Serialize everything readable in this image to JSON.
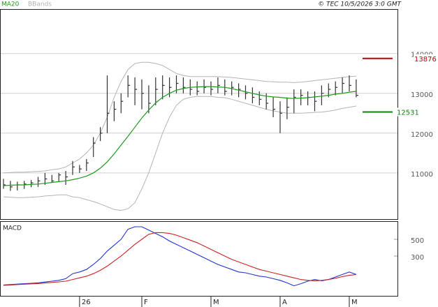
{
  "header": {
    "credit": "© TEC 10/5/2026 3:0 GMT"
  },
  "chart_data": [
    {
      "type": "ohlc",
      "ylim": [
        9840,
        15100
      ],
      "yticks": [
        11000,
        12000,
        13000,
        14000
      ],
      "grid": true,
      "bar_color": "#333333",
      "high": [
        10850,
        10800,
        10780,
        10800,
        10820,
        10900,
        11000,
        10950,
        11000,
        11050,
        11300,
        11200,
        11350,
        11900,
        12150,
        13450,
        12800,
        13000,
        13450,
        13400,
        13350,
        13200,
        13400,
        13450,
        13400,
        13450,
        13400,
        13350,
        13300,
        13350,
        13300,
        13400,
        13350,
        13300,
        13250,
        13200,
        13150,
        13050,
        13000,
        12900,
        12800,
        12900,
        13100,
        13100,
        13050,
        13050,
        13200,
        13250,
        13300,
        13400,
        13450,
        13350
      ],
      "low": [
        10600,
        10550,
        10560,
        10600,
        10640,
        10650,
        10700,
        10750,
        10780,
        10700,
        10950,
        11000,
        11050,
        11400,
        11800,
        12000,
        12300,
        12500,
        12900,
        12700,
        12600,
        12500,
        12700,
        12850,
        12900,
        13000,
        13000,
        12950,
        12950,
        13000,
        12950,
        13000,
        12950,
        12950,
        12900,
        12850,
        12750,
        12700,
        12600,
        12400,
        12000,
        12350,
        12500,
        12700,
        12700,
        12550,
        12700,
        12900,
        12950,
        13000,
        13050,
        12900
      ],
      "close": [
        10700,
        10650,
        10700,
        10720,
        10750,
        10800,
        10850,
        10800,
        10950,
        10900,
        11150,
        11100,
        11250,
        11750,
        12000,
        12500,
        12600,
        12800,
        13200,
        13100,
        13000,
        12750,
        13100,
        13200,
        13150,
        13250,
        13150,
        13100,
        13050,
        13150,
        13100,
        13200,
        13050,
        13150,
        13100,
        13000,
        12900,
        12850,
        12750,
        12600,
        12500,
        12650,
        12900,
        12950,
        12900,
        12800,
        13000,
        13100,
        13150,
        13250,
        13200,
        12950
      ],
      "series": [
        {
          "name": "MA20",
          "color": "#1f9a1f",
          "values": [
            10680,
            10690,
            10700,
            10700,
            10710,
            10720,
            10740,
            10760,
            10780,
            10800,
            10830,
            10870,
            10920,
            11000,
            11120,
            11280,
            11480,
            11700,
            11920,
            12150,
            12380,
            12580,
            12760,
            12900,
            13000,
            13080,
            13120,
            13150,
            13160,
            13170,
            13170,
            13160,
            13150,
            13120,
            13080,
            13040,
            13000,
            12960,
            12930,
            12910,
            12900,
            12880,
            12870,
            12880,
            12890,
            12910,
            12930,
            12950,
            12980,
            13000,
            13030,
            13050
          ]
        },
        {
          "name": "BBands",
          "color": "#b4b4b4",
          "upper": [
            11000,
            11010,
            11020,
            11020,
            11030,
            11040,
            11050,
            11080,
            11100,
            11150,
            11250,
            11350,
            11500,
            11700,
            12000,
            12400,
            12900,
            13300,
            13600,
            13750,
            13780,
            13780,
            13750,
            13700,
            13600,
            13500,
            13450,
            13420,
            13420,
            13420,
            13420,
            13420,
            13410,
            13400,
            13380,
            13360,
            13340,
            13320,
            13300,
            13290,
            13280,
            13280,
            13270,
            13280,
            13300,
            13320,
            13340,
            13360,
            13380,
            13400,
            13420,
            13430
          ],
          "lower": [
            10400,
            10390,
            10380,
            10380,
            10390,
            10400,
            10420,
            10430,
            10450,
            10450,
            10400,
            10380,
            10330,
            10280,
            10220,
            10150,
            10080,
            10060,
            10100,
            10250,
            10600,
            11000,
            11500,
            12000,
            12400,
            12700,
            12850,
            12900,
            12920,
            12920,
            12920,
            12900,
            12890,
            12850,
            12800,
            12750,
            12700,
            12650,
            12600,
            12560,
            12530,
            12500,
            12500,
            12500,
            12510,
            12520,
            12530,
            12550,
            12580,
            12620,
            12650,
            12680
          ]
        }
      ],
      "levels": [
        {
          "value": 13876,
          "color": "#c00000"
        },
        {
          "value": 12531,
          "color": "#108010"
        }
      ]
    },
    {
      "type": "macd",
      "title": "MACD",
      "ylim": [
        -175,
        708
      ],
      "yticks": [
        300,
        500
      ],
      "categories": [
        null,
        null,
        null,
        null,
        null,
        null,
        null,
        null,
        null,
        null,
        null,
        "26",
        null,
        null,
        null,
        null,
        null,
        null,
        null,
        null,
        "F",
        null,
        null,
        null,
        null,
        null,
        null,
        null,
        null,
        null,
        "M",
        null,
        null,
        null,
        null,
        null,
        null,
        null,
        null,
        null,
        "A",
        null,
        null,
        null,
        null,
        null,
        null,
        null,
        null,
        null,
        "M",
        null
      ],
      "series": [
        {
          "color": "#2233cc",
          "values": [
            -45,
            -40,
            -35,
            -30,
            -25,
            -20,
            -10,
            0,
            10,
            30,
            90,
            110,
            140,
            200,
            270,
            360,
            430,
            500,
            620,
            650,
            650,
            610,
            570,
            530,
            480,
            440,
            400,
            360,
            320,
            280,
            240,
            200,
            170,
            140,
            110,
            100,
            80,
            60,
            50,
            30,
            10,
            -20,
            -55,
            -30,
            0,
            20,
            5,
            20,
            50,
            80,
            110,
            80
          ]
        },
        {
          "color": "#cc2222",
          "values": [
            -50,
            -45,
            -40,
            -36,
            -32,
            -28,
            -22,
            -15,
            -8,
            0,
            20,
            40,
            60,
            90,
            130,
            180,
            240,
            300,
            370,
            440,
            500,
            560,
            580,
            580,
            570,
            550,
            520,
            490,
            460,
            420,
            380,
            340,
            300,
            260,
            230,
            200,
            170,
            140,
            120,
            100,
            80,
            60,
            40,
            20,
            10,
            5,
            10,
            20,
            35,
            55,
            70,
            80
          ]
        }
      ]
    }
  ]
}
